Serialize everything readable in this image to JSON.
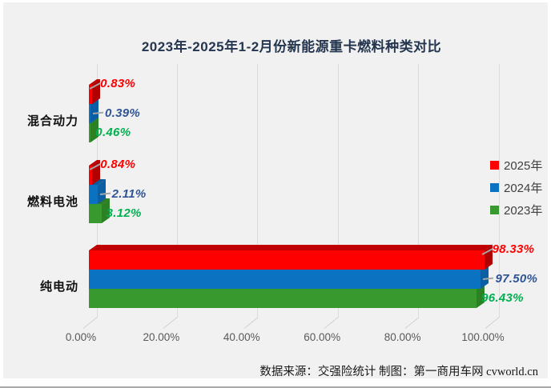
{
  "title": "2023年-2025年1-2月份新能源重卡燃料种类对比",
  "source_note": "数据来源：交强险统计 制图：第一商用车网 cvworld.cn",
  "colors": {
    "background": "#f1f1f1",
    "gridline": "#dcdcdc",
    "title_text": "#24364f",
    "axis_text": "#595959"
  },
  "chart_data": {
    "type": "bar",
    "orientation": "horizontal",
    "style": "3d",
    "title": "2023年-2025年1-2月份新能源重卡燃料种类对比",
    "categories": [
      "混合动力",
      "燃料电池",
      "纯电动"
    ],
    "series": [
      {
        "name": "2025年",
        "values": [
          0.83,
          0.84,
          98.33
        ],
        "value_labels": [
          "0.83%",
          "0.84%",
          "98.33%"
        ],
        "color": "#fe0000",
        "top_color": "#c00000",
        "side_color": "#b00000",
        "label_color": "#fe0000"
      },
      {
        "name": "2024年",
        "values": [
          0.39,
          2.11,
          97.5
        ],
        "value_labels": [
          "0.39%",
          "2.11%",
          "97.50%"
        ],
        "color": "#0b72c2",
        "top_color": "#085a9a",
        "side_color": "#0a5fa4",
        "label_color": "#2f5496"
      },
      {
        "name": "2023年",
        "values": [
          0.46,
          3.12,
          96.43
        ],
        "value_labels": [
          "0.46%",
          "3.12%",
          "96.43%"
        ],
        "color": "#38992e",
        "top_color": "#2a7a22",
        "side_color": "#2d8125",
        "label_color": "#00b050"
      }
    ],
    "x_axis": {
      "min": 0,
      "max": 100,
      "tick_labels": [
        "0.00%",
        "20.00%",
        "40.00%",
        "60.00%",
        "80.00%",
        "100.00%"
      ]
    },
    "legend": [
      {
        "label": "2025年",
        "color": "#fe0000"
      },
      {
        "label": "2024年",
        "color": "#0b72c2"
      },
      {
        "label": "2023年",
        "color": "#38992e"
      }
    ],
    "gridlines": true,
    "legend_position": "right"
  }
}
